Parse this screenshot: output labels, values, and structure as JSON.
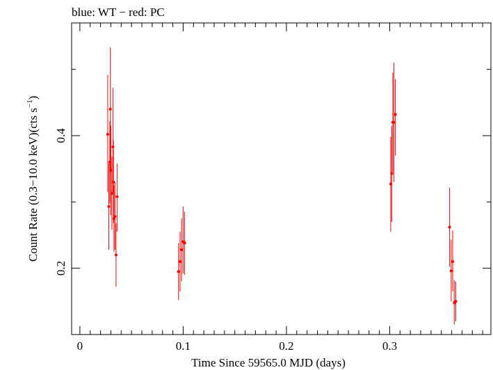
{
  "chart_data": {
    "type": "scatter",
    "title": "blue: WT − red: PC",
    "xlabel": "Time Since 59565.0 MJD (days)",
    "ylabel_main": "Count Rate (0.3−10.0 keV)(cts s",
    "ylabel_sup": "−1",
    "ylabel_end": ")",
    "xlim": [
      -0.008,
      0.398
    ],
    "ylim": [
      0.1,
      0.57
    ],
    "x_ticks_major": [
      0,
      0.1,
      0.2,
      0.3
    ],
    "x_tick_labels": [
      "0",
      "0.1",
      "0.2",
      "0.3"
    ],
    "y_ticks_major": [
      0.2,
      0.4
    ],
    "y_tick_labels": [
      "0.2",
      "0.4"
    ],
    "grid": false,
    "series": [
      {
        "color": "#ff0000",
        "points": [
          {
            "x": 0.027,
            "y": 0.402,
            "ylo": 0.315,
            "yhi": 0.492
          },
          {
            "x": 0.028,
            "y": 0.293,
            "ylo": 0.228,
            "yhi": 0.358
          },
          {
            "x": 0.029,
            "y": 0.36,
            "ylo": 0.298,
            "yhi": 0.422
          },
          {
            "x": 0.0295,
            "y": 0.44,
            "ylo": 0.345,
            "yhi": 0.533
          },
          {
            "x": 0.03,
            "y": 0.348,
            "ylo": 0.28,
            "yhi": 0.415
          },
          {
            "x": 0.031,
            "y": 0.313,
            "ylo": 0.258,
            "yhi": 0.368
          },
          {
            "x": 0.032,
            "y": 0.383,
            "ylo": 0.315,
            "yhi": 0.472
          },
          {
            "x": 0.0325,
            "y": 0.33,
            "ylo": 0.268,
            "yhi": 0.392
          },
          {
            "x": 0.033,
            "y": 0.275,
            "ylo": 0.225,
            "yhi": 0.325
          },
          {
            "x": 0.034,
            "y": 0.278,
            "ylo": 0.228,
            "yhi": 0.33
          },
          {
            "x": 0.035,
            "y": 0.22,
            "ylo": 0.172,
            "yhi": 0.268
          },
          {
            "x": 0.036,
            "y": 0.308,
            "ylo": 0.255,
            "yhi": 0.358
          },
          {
            "x": 0.0955,
            "y": 0.195,
            "ylo": 0.152,
            "yhi": 0.238
          },
          {
            "x": 0.097,
            "y": 0.21,
            "ylo": 0.165,
            "yhi": 0.255
          },
          {
            "x": 0.0985,
            "y": 0.228,
            "ylo": 0.18,
            "yhi": 0.275
          },
          {
            "x": 0.1,
            "y": 0.24,
            "ylo": 0.192,
            "yhi": 0.293
          },
          {
            "x": 0.1015,
            "y": 0.238,
            "ylo": 0.19,
            "yhi": 0.285
          },
          {
            "x": 0.301,
            "y": 0.327,
            "ylo": 0.255,
            "yhi": 0.398
          },
          {
            "x": 0.302,
            "y": 0.343,
            "ylo": 0.27,
            "yhi": 0.415
          },
          {
            "x": 0.303,
            "y": 0.42,
            "ylo": 0.345,
            "yhi": 0.495
          },
          {
            "x": 0.304,
            "y": 0.42,
            "ylo": 0.33,
            "yhi": 0.51
          },
          {
            "x": 0.3055,
            "y": 0.432,
            "ylo": 0.37,
            "yhi": 0.485
          },
          {
            "x": 0.358,
            "y": 0.262,
            "ylo": 0.202,
            "yhi": 0.322
          },
          {
            "x": 0.3595,
            "y": 0.196,
            "ylo": 0.15,
            "yhi": 0.243
          },
          {
            "x": 0.361,
            "y": 0.21,
            "ylo": 0.165,
            "yhi": 0.257
          },
          {
            "x": 0.3625,
            "y": 0.148,
            "ylo": 0.115,
            "yhi": 0.182
          },
          {
            "x": 0.364,
            "y": 0.15,
            "ylo": 0.12,
            "yhi": 0.18
          }
        ]
      }
    ]
  }
}
